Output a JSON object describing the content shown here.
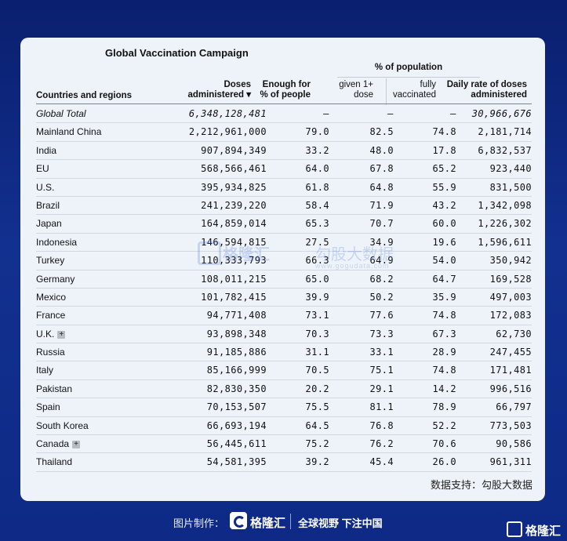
{
  "title": "Global Vaccination Campaign",
  "headers": {
    "country": "Countries and regions",
    "doses_line1": "Doses",
    "doses_line2": "administered ▾",
    "enough_line1": "Enough for",
    "enough_line2": "% of people",
    "pct_group": "% of population",
    "given_line1": "given 1+",
    "given_line2": "dose",
    "fully_line1": "fully",
    "fully_line2": "vaccinated",
    "daily_line1": "Daily rate of doses",
    "daily_line2": "administered"
  },
  "rows": [
    {
      "country": "Global Total",
      "doses": "6,348,128,481",
      "enough": "–",
      "given": "–",
      "fully": "–",
      "daily": "30,966,676",
      "plus": false
    },
    {
      "country": "Mainland China",
      "doses": "2,212,961,000",
      "enough": "79.0",
      "given": "82.5",
      "fully": "74.8",
      "daily": "2,181,714",
      "plus": false
    },
    {
      "country": "India",
      "doses": "907,894,349",
      "enough": "33.2",
      "given": "48.0",
      "fully": "17.8",
      "daily": "6,832,537",
      "plus": false
    },
    {
      "country": "EU",
      "doses": "568,566,461",
      "enough": "64.0",
      "given": "67.8",
      "fully": "65.2",
      "daily": "923,440",
      "plus": false
    },
    {
      "country": "U.S.",
      "doses": "395,934,825",
      "enough": "61.8",
      "given": "64.8",
      "fully": "55.9",
      "daily": "831,500",
      "plus": false
    },
    {
      "country": "Brazil",
      "doses": "241,239,220",
      "enough": "58.4",
      "given": "71.9",
      "fully": "43.2",
      "daily": "1,342,098",
      "plus": false
    },
    {
      "country": "Japan",
      "doses": "164,859,014",
      "enough": "65.3",
      "given": "70.7",
      "fully": "60.0",
      "daily": "1,226,302",
      "plus": false
    },
    {
      "country": "Indonesia",
      "doses": "146,594,815",
      "enough": "27.5",
      "given": "34.9",
      "fully": "19.6",
      "daily": "1,596,611",
      "plus": false
    },
    {
      "country": "Turkey",
      "doses": "110,333,793",
      "enough": "66.3",
      "given": "64.9",
      "fully": "54.0",
      "daily": "350,942",
      "plus": false
    },
    {
      "country": "Germany",
      "doses": "108,011,215",
      "enough": "65.0",
      "given": "68.2",
      "fully": "64.7",
      "daily": "169,528",
      "plus": false
    },
    {
      "country": "Mexico",
      "doses": "101,782,415",
      "enough": "39.9",
      "given": "50.2",
      "fully": "35.9",
      "daily": "497,003",
      "plus": false
    },
    {
      "country": "France",
      "doses": "94,771,408",
      "enough": "73.1",
      "given": "77.6",
      "fully": "74.8",
      "daily": "172,083",
      "plus": false
    },
    {
      "country": "U.K.",
      "doses": "93,898,348",
      "enough": "70.3",
      "given": "73.3",
      "fully": "67.3",
      "daily": "62,730",
      "plus": true
    },
    {
      "country": "Russia",
      "doses": "91,185,886",
      "enough": "31.1",
      "given": "33.1",
      "fully": "28.9",
      "daily": "247,455",
      "plus": false
    },
    {
      "country": "Italy",
      "doses": "85,166,999",
      "enough": "70.5",
      "given": "75.1",
      "fully": "74.8",
      "daily": "171,481",
      "plus": false
    },
    {
      "country": "Pakistan",
      "doses": "82,830,350",
      "enough": "20.2",
      "given": "29.1",
      "fully": "14.2",
      "daily": "996,516",
      "plus": false
    },
    {
      "country": "Spain",
      "doses": "70,153,507",
      "enough": "75.5",
      "given": "81.1",
      "fully": "78.9",
      "daily": "66,797",
      "plus": false
    },
    {
      "country": "South Korea",
      "doses": "66,693,194",
      "enough": "64.5",
      "given": "76.8",
      "fully": "52.2",
      "daily": "773,503",
      "plus": false
    },
    {
      "country": "Canada",
      "doses": "56,445,611",
      "enough": "75.2",
      "given": "76.2",
      "fully": "70.6",
      "daily": "90,586",
      "plus": true
    },
    {
      "country": "Thailand",
      "doses": "54,581,395",
      "enough": "39.2",
      "given": "45.4",
      "fully": "26.0",
      "daily": "961,311",
      "plus": false
    }
  ],
  "plus_symbol": "+",
  "source": "数据支持：勾股大数据",
  "watermark": {
    "brand": "格隆汇",
    "brand2": "勾股大数据",
    "url": "www.gogudata.com"
  },
  "footer": {
    "label": "图片制作：",
    "brand": "格隆汇",
    "slogan": "全球视野 下注中国",
    "corner_brand": "格隆汇"
  }
}
